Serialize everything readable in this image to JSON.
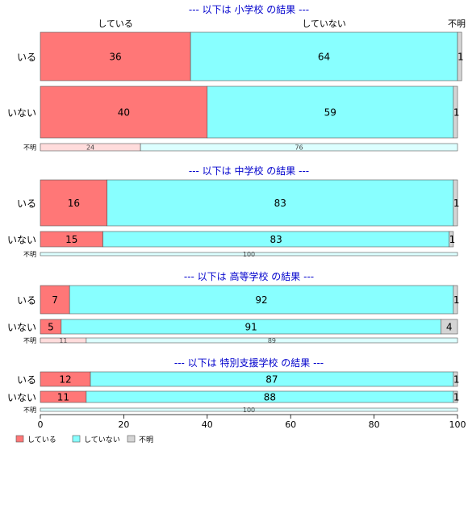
{
  "chart_data": {
    "type": "stacked-horizontal-bar",
    "columns": [
      "している",
      "していない",
      "不明"
    ],
    "legend": {
      "position": "bottom-left",
      "items": [
        {
          "name": "している",
          "color": "#ff7777"
        },
        {
          "name": "していない",
          "color": "#88ffff"
        },
        {
          "name": "不明",
          "color": "#d4d4d4"
        }
      ]
    },
    "colors": {
      "しているマーク": "#ff7777",
      "していないマーク": "#88ffff",
      "不明マーク": "#d4d4d4",
      "しているlight": "#ffdcdc",
      "していないlight": "#dcffff",
      "title": "#0000cc"
    },
    "xlim": [
      0,
      100
    ],
    "xticks": [
      "0",
      "20",
      "40",
      "60",
      "80",
      "100"
    ],
    "groups": [
      {
        "title": "--- 以下は 小学校 の結果 ---",
        "rows": [
          {
            "label": "いる",
            "values": [
              36,
              64,
              1
            ],
            "labels": [
              "36",
              "64",
              "1"
            ]
          },
          {
            "label": "いない",
            "values": [
              40,
              59,
              1
            ],
            "labels": [
              "40",
              "59",
              "1"
            ]
          },
          {
            "label": "不明",
            "values": [
              24,
              76,
              0
            ],
            "labels": [
              "24",
              "76",
              ""
            ]
          }
        ]
      },
      {
        "title": "--- 以下は 中学校 の結果 ---",
        "rows": [
          {
            "label": "いる",
            "values": [
              16,
              83,
              1
            ],
            "labels": [
              "16",
              "83",
              "1"
            ]
          },
          {
            "label": "いない",
            "values": [
              15,
              83,
              1
            ],
            "labels": [
              "15",
              "83",
              "1"
            ]
          },
          {
            "label": "不明",
            "values": [
              0,
              100,
              0
            ],
            "labels": [
              "",
              "100",
              ""
            ]
          }
        ]
      },
      {
        "title": "--- 以下は 高等学校 の結果 ---",
        "rows": [
          {
            "label": "いる",
            "values": [
              7,
              92,
              1
            ],
            "labels": [
              "7",
              "92",
              "1"
            ]
          },
          {
            "label": "いない",
            "values": [
              5,
              91,
              4
            ],
            "labels": [
              "5",
              "91",
              "4"
            ]
          },
          {
            "label": "不明",
            "values": [
              11,
              89,
              0
            ],
            "labels": [
              "11",
              "89",
              ""
            ]
          }
        ]
      },
      {
        "title": "--- 以下は 特別支援学校 の結果 ---",
        "rows": [
          {
            "label": "いる",
            "values": [
              12,
              87,
              1
            ],
            "labels": [
              "12",
              "87",
              "1"
            ]
          },
          {
            "label": "いない",
            "values": [
              11,
              88,
              1
            ],
            "labels": [
              "11",
              "88",
              "1"
            ]
          },
          {
            "label": "不明",
            "values": [
              0,
              100,
              0
            ],
            "labels": [
              "",
              "100",
              ""
            ]
          }
        ]
      }
    ]
  }
}
